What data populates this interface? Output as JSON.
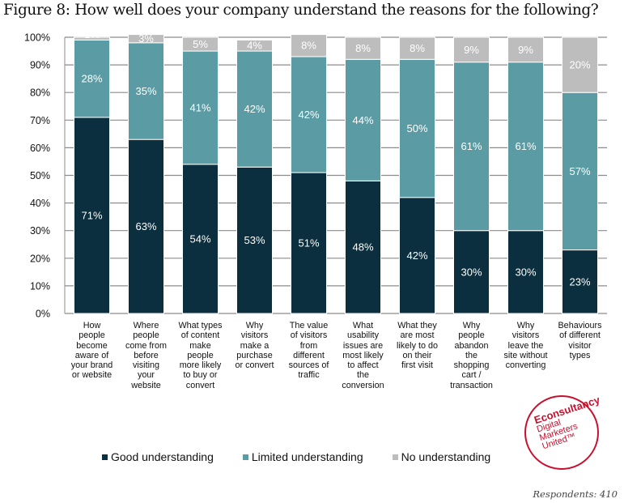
{
  "title": "Figure 8: How well does your company understand the reasons for the following?",
  "respondents": "Respondents: 410",
  "logo": {
    "line1": "Econsultancy",
    "line2": "Digital\nMarketers\nUnited™"
  },
  "colors": {
    "good": "#0b2f3e",
    "limited": "#5b9ca4",
    "none": "#bdbdbd"
  },
  "chart_data": {
    "type": "bar",
    "stacked": true,
    "title": "Figure 8: How well does your company understand the reasons for the following?",
    "xlabel": "",
    "ylabel": "",
    "ylim": [
      0,
      100
    ],
    "yticks": [
      "0%",
      "10%",
      "20%",
      "30%",
      "40%",
      "50%",
      "60%",
      "70%",
      "80%",
      "90%",
      "100%"
    ],
    "grid": true,
    "legend_position": "bottom",
    "categories": [
      "How people become aware of your brand or website",
      "Where people come from before visiting your website",
      "What types of content make people more likely to buy or convert",
      "Why visitors make a purchase or convert",
      "The value of visitors from different sources of traffic",
      "What usability issues are most likely to affect the conversion",
      "What they are most likely to do on their first visit",
      "Why people abandon the shopping cart / transaction",
      "Why visitors leave the site without converting",
      "Behaviours of different visitor types"
    ],
    "category_lines": [
      [
        "How",
        "people",
        "become",
        "aware of",
        "your brand",
        "or website"
      ],
      [
        "Where",
        "people",
        "come from",
        "before",
        "visiting",
        "your",
        "website"
      ],
      [
        "What types",
        "of content",
        "make",
        "people",
        "more likely",
        "to buy or",
        "convert"
      ],
      [
        "Why",
        "visitors",
        "make a",
        "purchase",
        "or convert"
      ],
      [
        "The value",
        "of visitors",
        "from",
        "different",
        "sources of",
        "traffic"
      ],
      [
        "What",
        "usability",
        "issues are",
        "most likely",
        "to affect",
        "the",
        "conversion"
      ],
      [
        "What they",
        "are most",
        "likely to do",
        "on their",
        "first visit"
      ],
      [
        "Why",
        "people",
        "abandon",
        "the",
        "shopping",
        "cart /",
        "transaction"
      ],
      [
        "Why",
        "visitors",
        "leave the",
        "site without",
        "converting"
      ],
      [
        "Behaviours",
        "of different",
        "visitor",
        "types"
      ]
    ],
    "series": [
      {
        "name": "Good understanding",
        "values": [
          71,
          63,
          54,
          53,
          51,
          48,
          42,
          30,
          30,
          23
        ]
      },
      {
        "name": "Limited understanding",
        "values": [
          28,
          35,
          41,
          42,
          42,
          44,
          50,
          61,
          61,
          57
        ]
      },
      {
        "name": "No understanding",
        "values": [
          1,
          3,
          5,
          4,
          8,
          8,
          8,
          9,
          9,
          20
        ]
      }
    ]
  }
}
